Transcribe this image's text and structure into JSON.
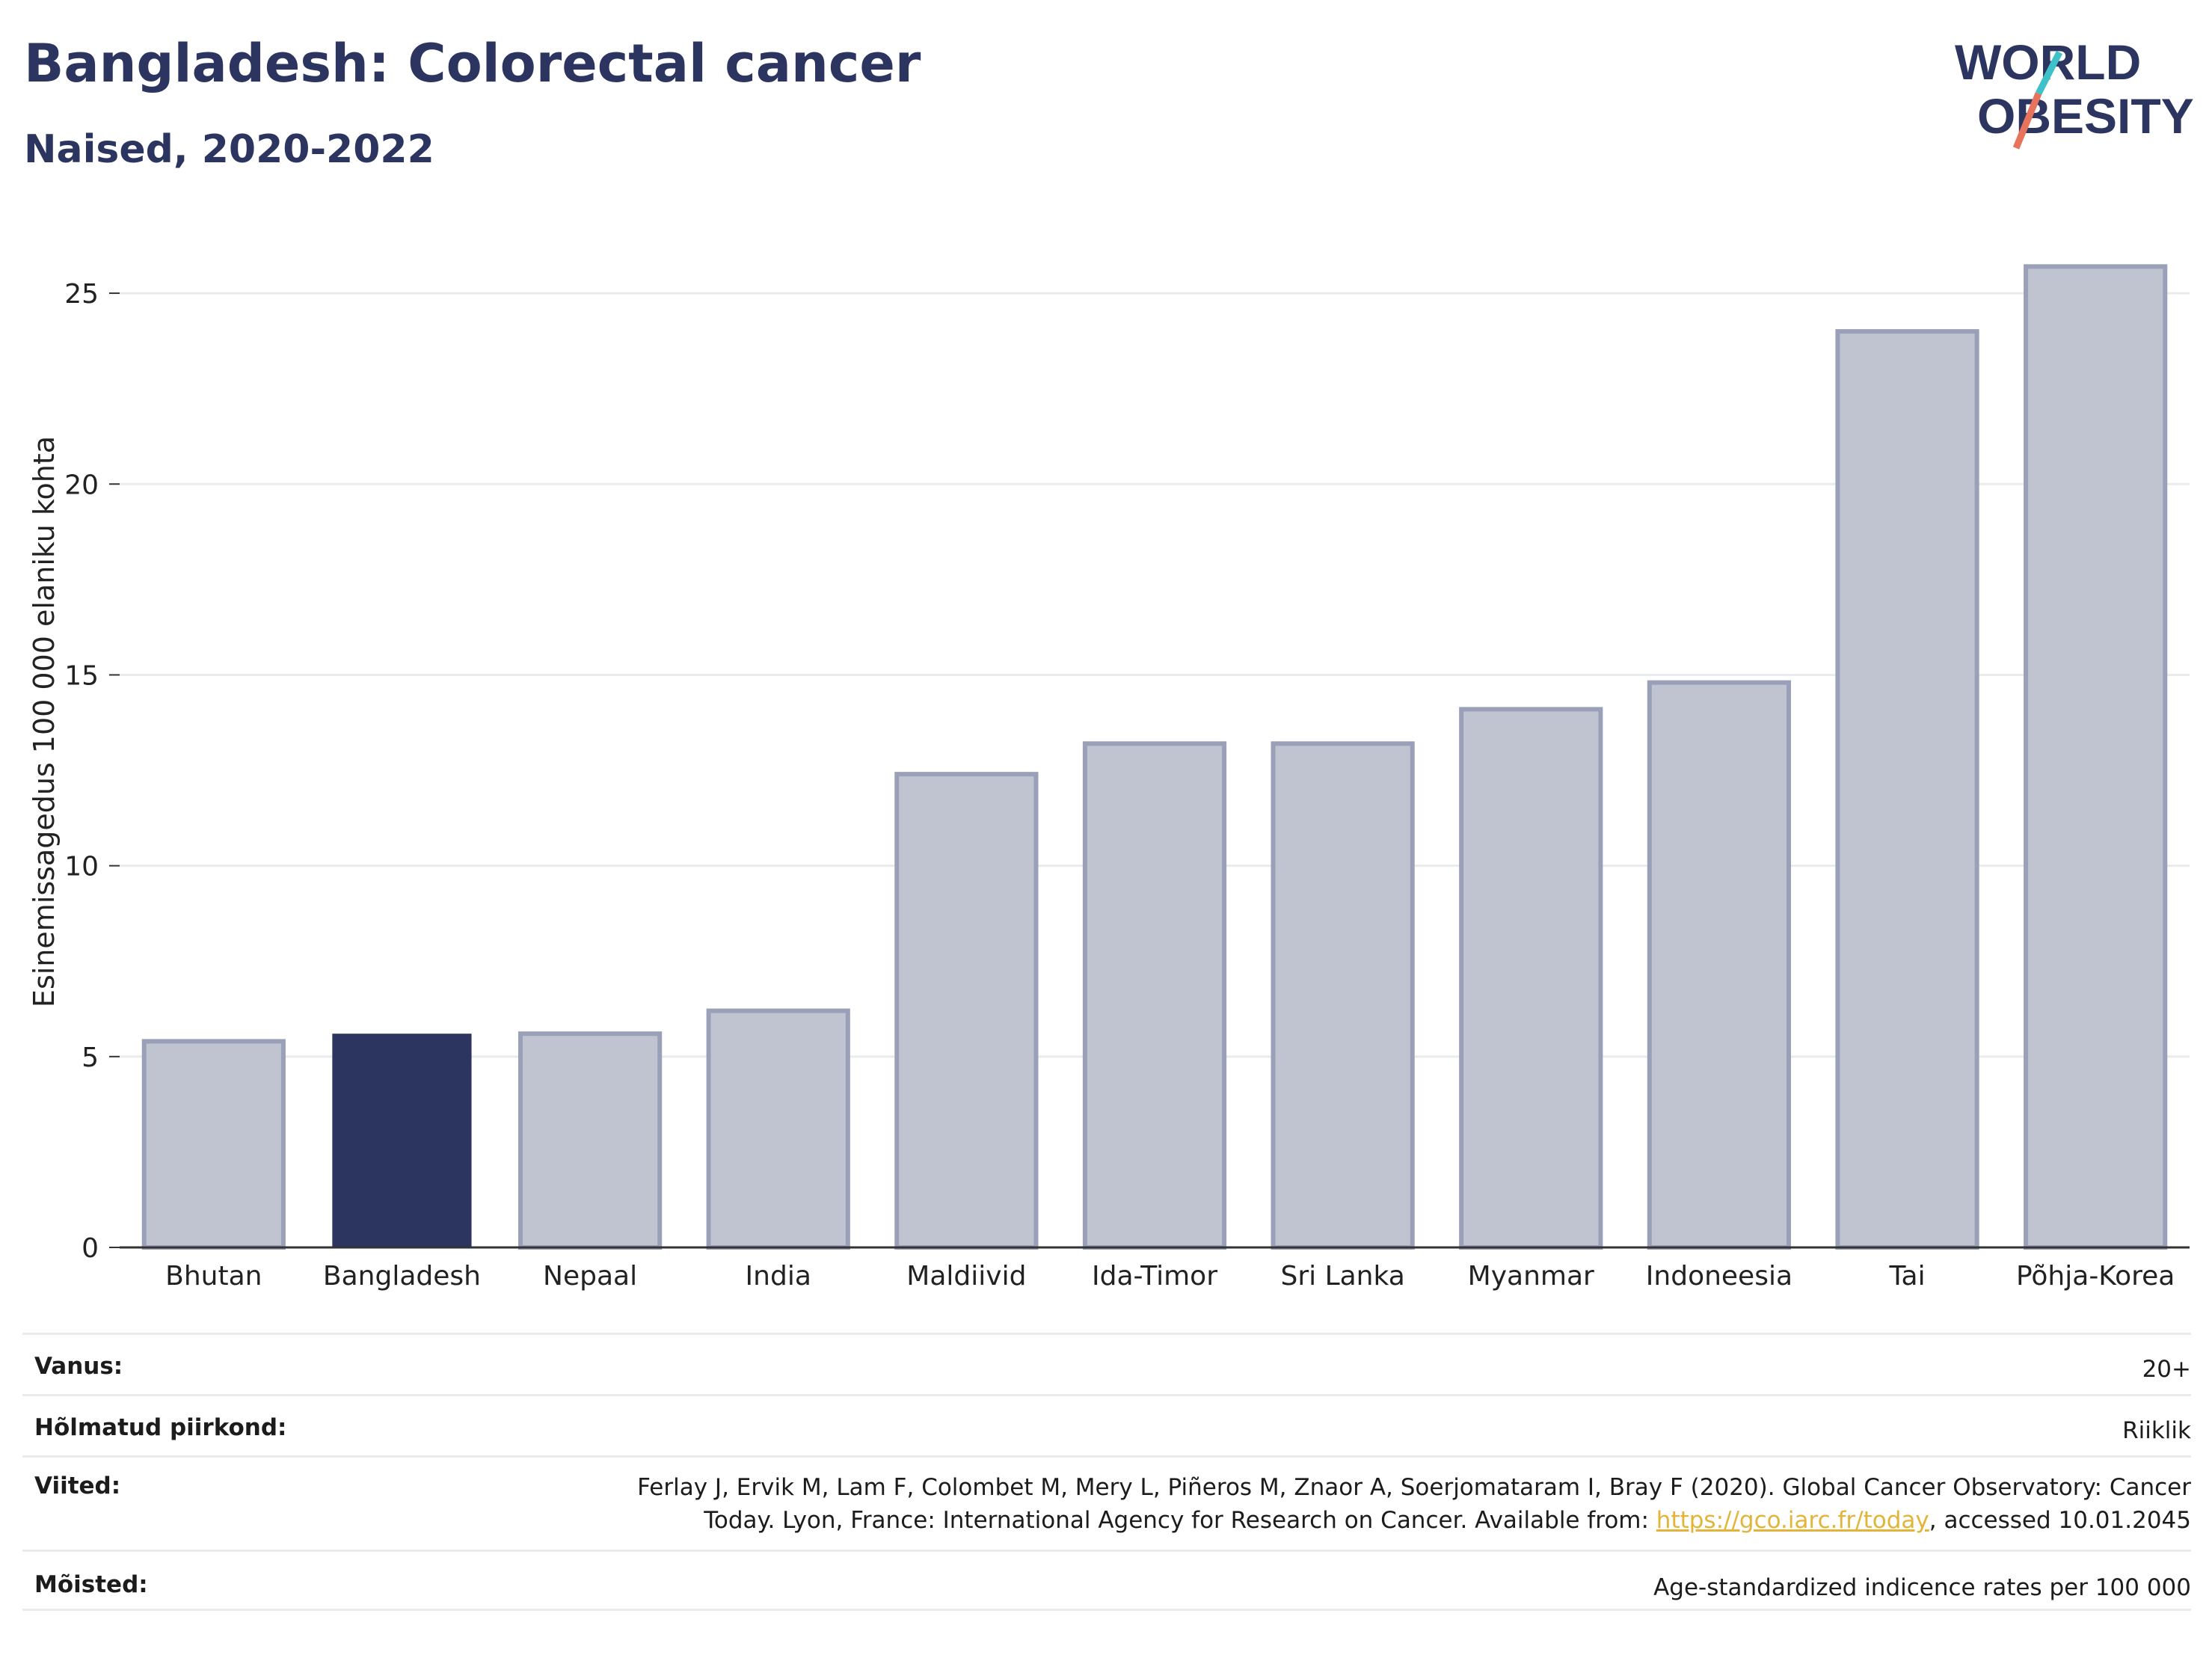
{
  "header": {
    "title": "Bangladesh: Colorectal cancer",
    "subtitle": "Naised, 2020-2022"
  },
  "logo": {
    "line1": "WORLD",
    "line2": "OBESITY",
    "text_color": "#2b3560",
    "slash_colors": [
      "#3fc1c9",
      "#e8735d"
    ]
  },
  "chart_data": {
    "type": "bar",
    "ylabel": "Esinemissagedus 100 000 elaniku kohta",
    "categories": [
      "Bhutan",
      "Bangladesh",
      "Nepaal",
      "India",
      "Maldiivid",
      "Ida-Timor",
      "Sri Lanka",
      "Myanmar",
      "Indoneesia",
      "Tai",
      "Põhja-Korea"
    ],
    "values": [
      5.4,
      5.6,
      5.6,
      6.2,
      12.4,
      13.2,
      13.2,
      14.1,
      14.8,
      24.0,
      25.7
    ],
    "highlight": "Bangladesh",
    "ylim": [
      0,
      27
    ],
    "yticks": [
      0,
      5,
      10,
      15,
      20,
      25
    ],
    "grid": true,
    "colors": {
      "highlight": "#2b3560",
      "bar": "#c0c4d1",
      "bar_border": "#9aa0b8",
      "grid": "#e8ecef",
      "axis": "#333333"
    }
  },
  "meta": {
    "age_label": "Vanus:",
    "age_value": "20+",
    "region_label": "Hõlmatud piirkond:",
    "region_value": "Riiklik",
    "refs_label": "Viited:",
    "refs_line1": "Ferlay J, Ervik M, Lam F, Colombet M, Mery L, Piñeros M, Znaor A, Soerjomataram I, Bray F (2020). Global Cancer Observatory: Cancer",
    "refs_line2_pre": "Today. Lyon, France: International Agency for Research on Cancer. Available from: ",
    "refs_link": "https://gco.iarc.fr/today",
    "refs_line2_post": ", accessed 10.01.2045",
    "defs_label": "Mõisted:",
    "defs_value": "Age-standardized indicence rates per 100 000"
  }
}
